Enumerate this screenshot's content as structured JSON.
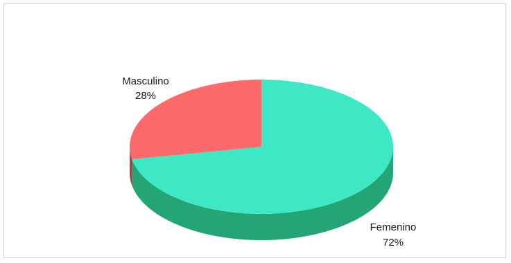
{
  "chart_data": {
    "type": "pie",
    "style": "3d",
    "title": "",
    "slices": [
      {
        "name": "Femenino",
        "value": 72,
        "label_name": "Femenino",
        "label_value": "72%",
        "color_top": "#3ee8c4",
        "color_side": "#23a576"
      },
      {
        "name": "Masculino",
        "value": 28,
        "label_name": "Masculino",
        "label_value": "28%",
        "color_top": "#fd6a6c",
        "color_side": "#a84044"
      }
    ],
    "start_angle_deg": -90,
    "direction": "clockwise",
    "legend": "none"
  }
}
